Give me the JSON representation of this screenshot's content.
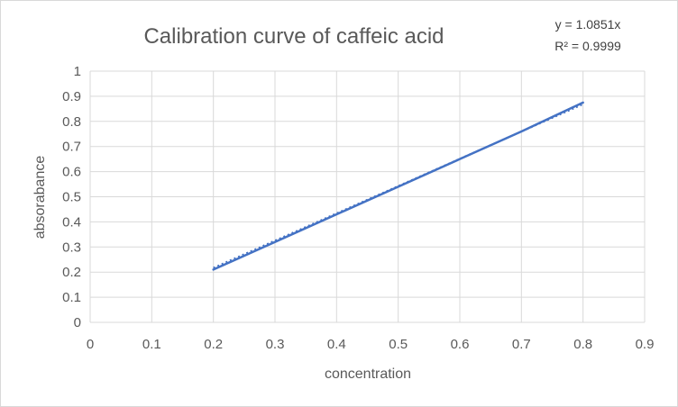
{
  "chart_data": {
    "type": "line",
    "title": "Calibration curve of caffeic acid",
    "xlabel": "concentration",
    "ylabel": "absorabance",
    "xlim": [
      0,
      0.9
    ],
    "ylim": [
      0,
      1
    ],
    "x_ticks": [
      "0",
      "0.1",
      "0.2",
      "0.3",
      "0.4",
      "0.5",
      "0.6",
      "0.7",
      "0.8",
      "0.9"
    ],
    "y_ticks": [
      "0",
      "0.1",
      "0.2",
      "0.3",
      "0.4",
      "0.5",
      "0.6",
      "0.7",
      "0.8",
      "0.9",
      "1"
    ],
    "grid": true,
    "legend": "none",
    "series": [
      {
        "x": [
          0.2,
          0.3,
          0.4,
          0.5,
          0.6,
          0.7,
          0.8
        ],
        "y": [
          0.21,
          0.32,
          0.43,
          0.54,
          0.65,
          0.76,
          0.875
        ],
        "color": "#4472C4"
      }
    ],
    "trendline": {
      "style": "dotted",
      "slope": 1.0851,
      "x_range": [
        0.2,
        0.8
      ],
      "color": "#4472C4",
      "equation": "y = 1.0851x",
      "r_squared": "R² = 0.9999"
    }
  }
}
